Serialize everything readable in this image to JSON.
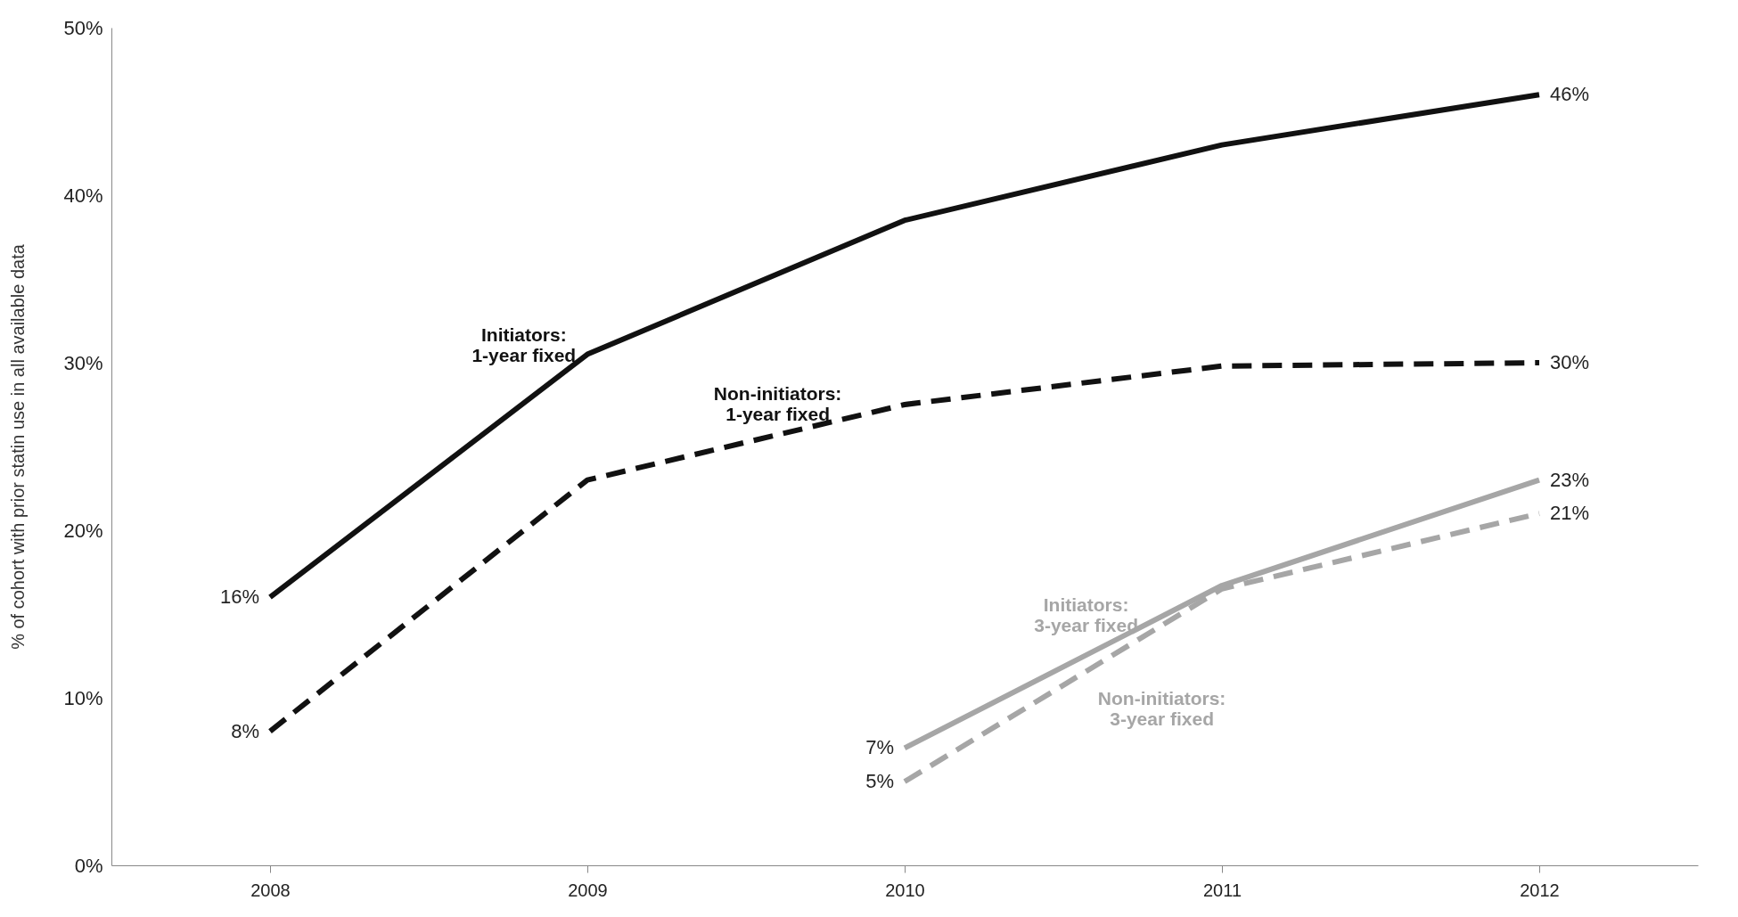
{
  "chart_data": {
    "type": "line",
    "ylabel": "% of cohort with prior statin use in all available data",
    "x": [
      2008,
      2009,
      2010,
      2011,
      2012
    ],
    "xlim": [
      2007.5,
      2012.5
    ],
    "xticks": [
      2008,
      2009,
      2010,
      2011,
      2012
    ],
    "ylim": [
      0,
      50
    ],
    "yticks": [
      {
        "value": 0,
        "label": "0%"
      },
      {
        "value": 10,
        "label": "10%"
      },
      {
        "value": 20,
        "label": "20%"
      },
      {
        "value": 30,
        "label": "30%"
      },
      {
        "value": 40,
        "label": "40%"
      },
      {
        "value": 50,
        "label": "50%"
      }
    ],
    "grid": false,
    "marker": "none",
    "series": [
      {
        "name": "Initiators:\n1-year fixed",
        "color": "#111111",
        "line_style": "solid",
        "values": [
          16,
          30.5,
          38.5,
          43,
          46
        ],
        "value_labels": [
          "16%",
          null,
          null,
          null,
          "46%"
        ]
      },
      {
        "name": "Non-initiators:\n1-year fixed",
        "color": "#111111",
        "line_style": "dashed",
        "values": [
          8,
          23,
          27.5,
          29.8,
          30
        ],
        "value_labels": [
          "8%",
          null,
          null,
          null,
          "30%"
        ]
      },
      {
        "name": "Initiators:\n3-year fixed",
        "color": "#a6a6a6",
        "line_style": "solid",
        "x": [
          2010,
          2011,
          2012
        ],
        "values": [
          7,
          16.7,
          23
        ],
        "value_labels": [
          "7%",
          null,
          "23%"
        ]
      },
      {
        "name": "Non-initiators:\n3-year fixed",
        "color": "#a6a6a6",
        "line_style": "dashed",
        "x": [
          2010,
          2011,
          2012
        ],
        "values": [
          5,
          16.5,
          21
        ],
        "value_labels": [
          "5%",
          null,
          "21%"
        ]
      }
    ]
  }
}
